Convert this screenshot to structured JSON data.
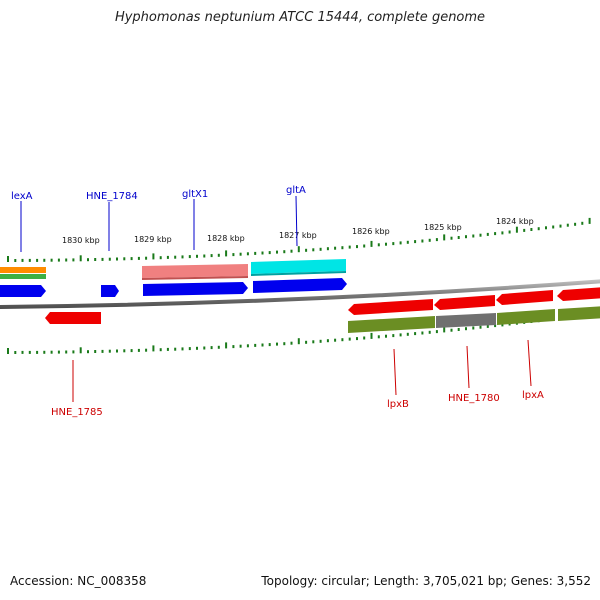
{
  "title": "Hyphomonas neptunium ATCC 15444, complete genome",
  "accession": "Accession: NC_008358",
  "summary": "Topology: circular; Length: 3,705,021 bp; Genes: 3,552",
  "ticks": [
    "1830 kbp",
    "1829 kbp",
    "1828 kbp",
    "1827 kbp",
    "1826 kbp",
    "1825 kbp",
    "1824 kbp"
  ],
  "labels": {
    "forward": [
      "lexA",
      "HNE_1784",
      "gltX1",
      "gltA"
    ],
    "reverse": [
      "HNE_1785",
      "lpxB",
      "HNE_1780",
      "lpxA"
    ]
  },
  "colors": {
    "forward_label": "#0000cc",
    "reverse_label": "#cc0000",
    "tick": "#1a7a1a",
    "cds_blue": "#0000ee",
    "cds_red": "#ee0000",
    "gene_pink": "#f08080",
    "gene_cyan": "#00e5e5",
    "gene_olive": "#6b8e23",
    "gene_gray": "#707070",
    "gene_orange": "#ff8c00",
    "backbone": "#8c8c8c"
  }
}
